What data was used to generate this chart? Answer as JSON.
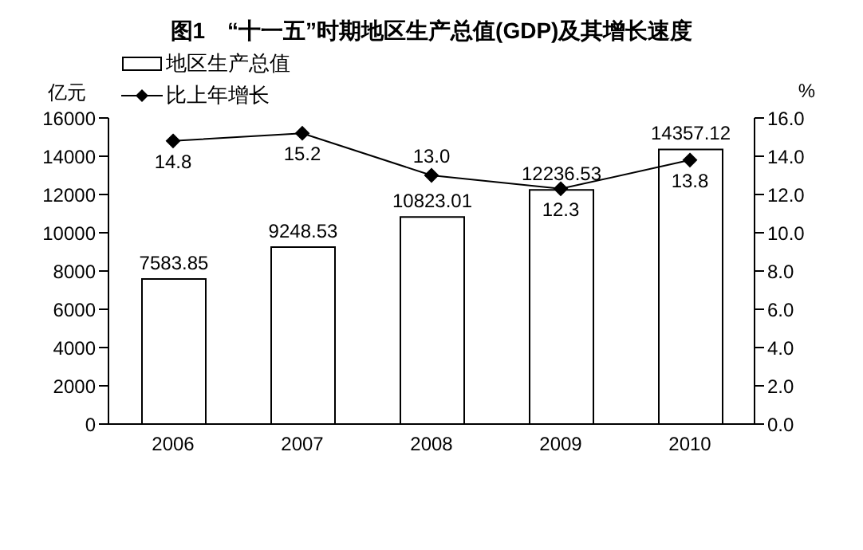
{
  "chart_data": {
    "type": "bar",
    "title": "图1　“十一五”时期地区生产总值(GDP)及其增长速度",
    "ylabel": "亿元",
    "y2label": "%",
    "categories": [
      "2006",
      "2007",
      "2008",
      "2009",
      "2010"
    ],
    "series": [
      {
        "name": "地区生产总值",
        "color": "#ffffff",
        "values": [
          7583.85,
          9248.53,
          10823.01,
          12236.53,
          14357.12
        ]
      },
      {
        "name": "比上年增长",
        "type": "line",
        "axis": "y2",
        "color": "#000000",
        "values": [
          14.8,
          15.2,
          13.0,
          12.3,
          13.8
        ],
        "value_labels": [
          "14.8",
          "15.2",
          "13.0",
          "12.3",
          "13.8"
        ]
      }
    ],
    "ylim": [
      0,
      16000
    ],
    "yticks": [
      0,
      2000,
      4000,
      6000,
      8000,
      10000,
      12000,
      14000,
      16000
    ],
    "y2lim": [
      0,
      16
    ],
    "y2ticks": [
      {
        "value": 0,
        "label": "0.0"
      },
      {
        "value": 2,
        "label": "2.0"
      },
      {
        "value": 4,
        "label": "4.0"
      },
      {
        "value": 6,
        "label": "6.0"
      },
      {
        "value": 8,
        "label": "8.0"
      },
      {
        "value": 10,
        "label": "10.0"
      },
      {
        "value": 12,
        "label": "12.0"
      },
      {
        "value": 14,
        "label": "14.0"
      },
      {
        "value": 16,
        "label": "16.0"
      }
    ],
    "data_labels": true,
    "legend": "top left",
    "grid": false,
    "marker": "diamond",
    "line_style": "solid"
  }
}
